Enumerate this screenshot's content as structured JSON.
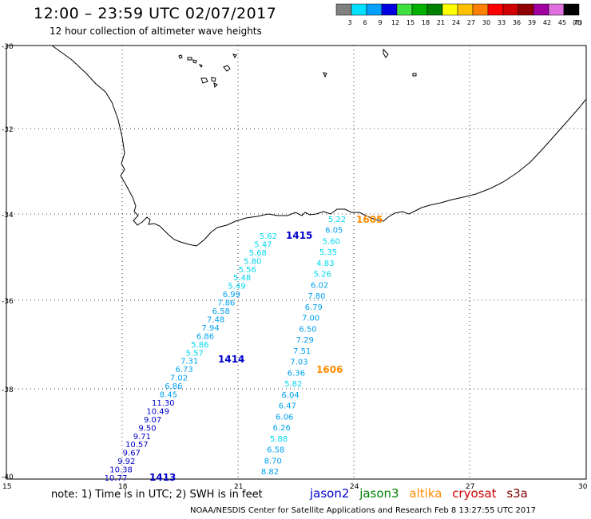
{
  "header": {
    "title": "12:00 – 23:59 UTC 02/07/2017",
    "subtitle": "12 hour collection of altimeter wave heights"
  },
  "legend": {
    "colors": [
      "#808080",
      "#00e0ff",
      "#00a0ff",
      "#0000e0",
      "#40e040",
      "#00b000",
      "#008000",
      "#ffff00",
      "#ffc000",
      "#ff8000",
      "#ff0000",
      "#d00000",
      "#900000",
      "#a000a0",
      "#e070e0",
      "#000000"
    ],
    "labels": [
      "3",
      "6",
      "9",
      "12",
      "15",
      "18",
      "21",
      "24",
      "27",
      "30",
      "33",
      "36",
      "39",
      "42",
      "45",
      "70"
    ],
    "unit": "(ft)"
  },
  "axes": {
    "lat_labels": [
      "-30",
      "-32",
      "-34",
      "-36",
      "-38",
      "-40"
    ],
    "lon_labels": [
      "15",
      "18",
      "21",
      "24",
      "27",
      "30"
    ]
  },
  "passes": [
    {
      "id": "1415",
      "satellite": "jason2",
      "color": "#0000cc"
    },
    {
      "id": "1414",
      "satellite": "jason2",
      "color": "#0000cc"
    },
    {
      "id": "1413",
      "satellite": "jason2",
      "color": "#0000cc"
    },
    {
      "id": "1605",
      "satellite": "altika",
      "color": "#ff8c00"
    },
    {
      "id": "1606",
      "satellite": "altika",
      "color": "#ff8c00"
    }
  ],
  "track_west": {
    "values": [
      "5.62",
      "5.47",
      "5.68",
      "5.80",
      "5.56",
      "5.48",
      "5.49",
      "6.99",
      "7.86",
      "6.58",
      "7.48",
      "7.94",
      "6.86",
      "5.86",
      "5.57",
      "7.31",
      "6.73",
      "7.02",
      "6.86",
      "8.45",
      "11.30",
      "10.49",
      "9.07",
      "9.50",
      "9.71",
      "10.57",
      "9.67",
      "9.92",
      "10.38",
      "10.77"
    ]
  },
  "track_east": {
    "values": [
      "5.22",
      "6.05",
      "5.60",
      "5.35",
      "4.83",
      "5.26",
      "6.02",
      "7.80",
      "6.79",
      "7.00",
      "6.50",
      "7.29",
      "7.51",
      "7.03",
      "6.36",
      "5.82",
      "6.04",
      "6.47",
      "6.06",
      "6.26",
      "5.88",
      "6.58",
      "8.70",
      "8.82"
    ]
  },
  "footer": {
    "note": "note:  1) Time is in UTC;  2) SWH is in feet",
    "satellites": [
      {
        "name": "jason2",
        "color": "#0000cc"
      },
      {
        "name": "jason3",
        "color": "#008000"
      },
      {
        "name": "altika",
        "color": "#ff8c00"
      },
      {
        "name": "cryosat",
        "color": "#cc0000"
      },
      {
        "name": "s3a",
        "color": "#800000"
      }
    ],
    "credit": "NOAA/NESDIS Center for Satellite Applications and Research    Feb  8 13:27:55 UTC 2017"
  }
}
